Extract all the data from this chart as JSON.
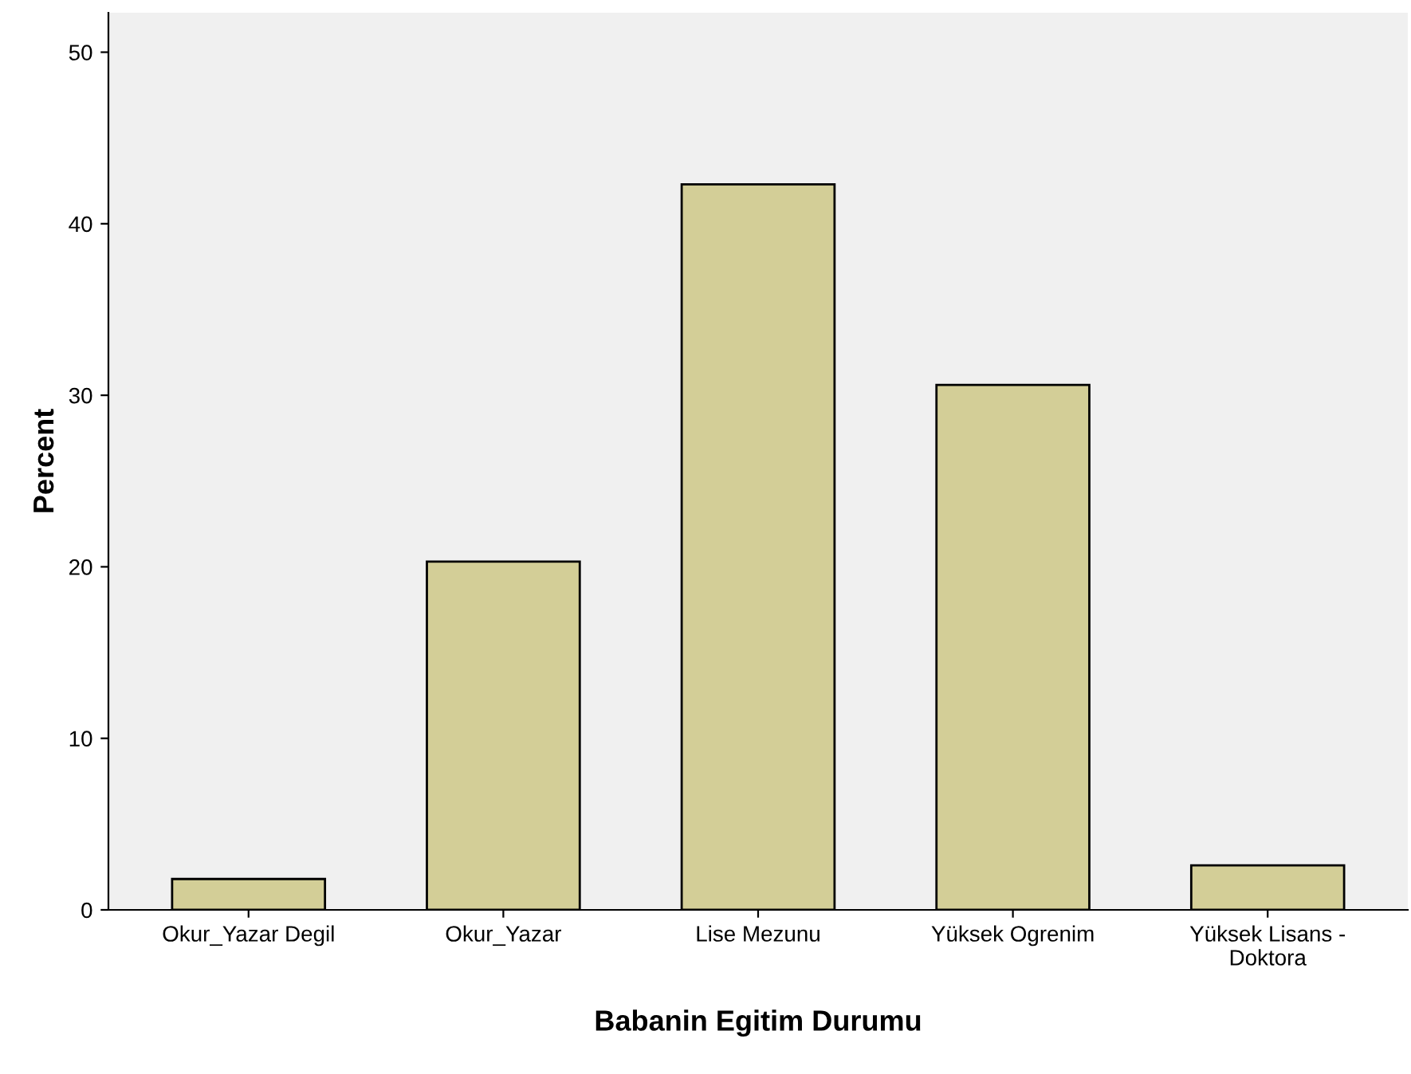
{
  "chart_data": {
    "type": "bar",
    "xlabel": "Babanin Egitim Durumu",
    "ylabel": "Percent",
    "categories": [
      "Okur_Yazar Degil",
      "Okur_Yazar",
      "Lise Mezunu",
      "Yüksek Ogrenim",
      "Yüksek Lisans -\nDoktora"
    ],
    "values": [
      1.8,
      20.3,
      42.3,
      30.6,
      2.6
    ],
    "color": "#d3ce97",
    "ylim": [
      0,
      52.3
    ],
    "yticks": [
      0,
      10,
      20,
      30,
      40,
      50
    ],
    "grid": false,
    "legend": false
  }
}
